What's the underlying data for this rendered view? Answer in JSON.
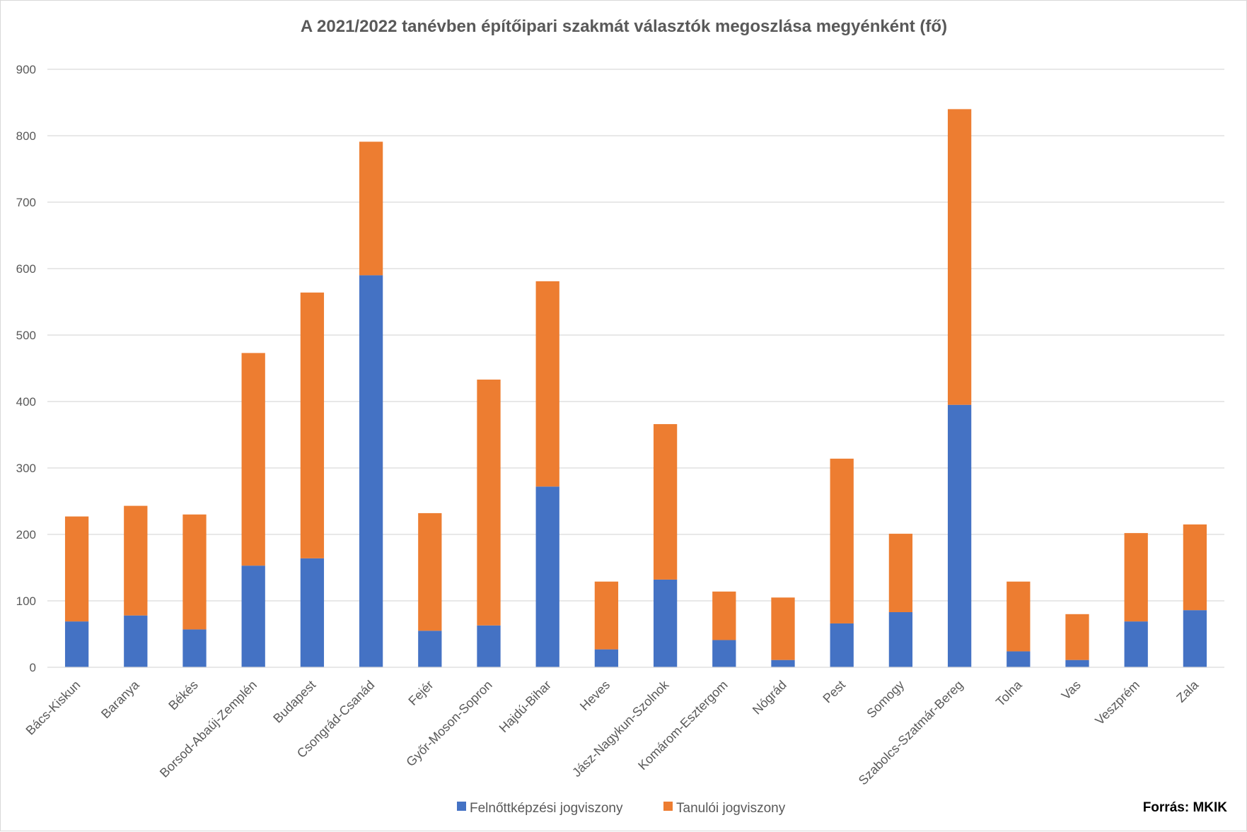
{
  "chart_data": {
    "type": "bar",
    "stacked": true,
    "title": "A 2021/2022 tanévben építőipari szakmát választók megoszlása megyénként (fő)",
    "xlabel": "",
    "ylabel": "",
    "ylim": [
      0,
      900
    ],
    "yticks": [
      0,
      100,
      200,
      300,
      400,
      500,
      600,
      700,
      800,
      900
    ],
    "grid": true,
    "legend_position": "bottom",
    "categories": [
      "Bács-Kiskun",
      "Baranya",
      "Békés",
      "Borsod-Abaúj-Zemplén",
      "Budapest",
      "Csongrád-Csanád",
      "Fejér",
      "Győr-Moson-Sopron",
      "Hajdú-Bihar",
      "Heves",
      "Jász-Nagykun-Szolnok",
      "Komárom-Esztergom",
      "Nógrád",
      "Pest",
      "Somogy",
      "Szabolcs-Szatmár-Bereg",
      "Tolna",
      "Vas",
      "Veszprém",
      "Zala"
    ],
    "series": [
      {
        "name": "Felnőttképzési jogviszony",
        "color": "#4472C4",
        "values": [
          69,
          78,
          57,
          153,
          164,
          590,
          55,
          63,
          272,
          27,
          132,
          41,
          11,
          66,
          83,
          395,
          24,
          11,
          69,
          86
        ]
      },
      {
        "name": "Tanulói jogviszony",
        "color": "#ED7D31",
        "values": [
          158,
          165,
          173,
          320,
          400,
          201,
          177,
          370,
          309,
          102,
          234,
          73,
          94,
          248,
          118,
          445,
          105,
          69,
          133,
          129
        ]
      }
    ],
    "gridline_color": "#d9d9d9",
    "source_note": "Forrás: MKIK"
  }
}
